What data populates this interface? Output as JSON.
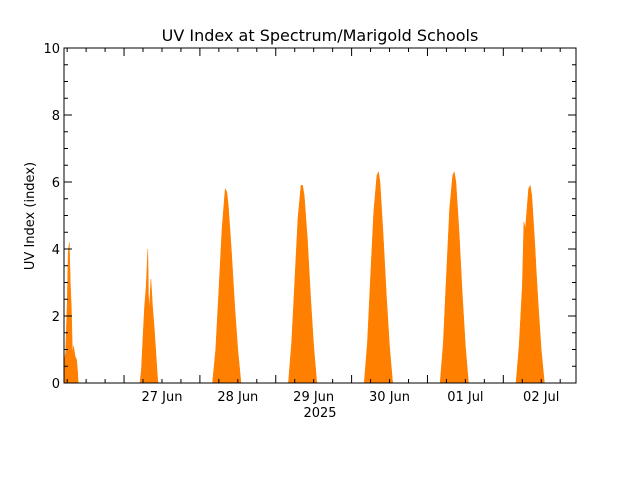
{
  "chart_data": {
    "type": "area",
    "title": "UV Index at Spectrum/Marigold Schools",
    "xlabel": "2025",
    "ylabel": "UV Index (index)",
    "ylim": [
      0,
      10
    ],
    "xlim": [
      "2025-06-26T05:00",
      "2025-07-02T23:00"
    ],
    "grid": false,
    "legend": "none",
    "color": "#ff7f00",
    "y_ticks": [
      0,
      2,
      4,
      6,
      8,
      10
    ],
    "x_ticks": [
      {
        "date": "2025-06-27",
        "label": "27 Jun"
      },
      {
        "date": "2025-06-28",
        "label": "28 Jun"
      },
      {
        "date": "2025-06-29",
        "label": "29 Jun"
      },
      {
        "date": "2025-06-30",
        "label": "30 Jun"
      },
      {
        "date": "2025-07-01",
        "label": "01 Jul"
      },
      {
        "date": "2025-07-02",
        "label": "02 Jul"
      }
    ],
    "series": [
      {
        "values": [
          [
            "2025-06-26T05:00",
            0.6
          ],
          [
            "2025-06-26T05:30",
            0.9
          ],
          [
            "2025-06-26T06:00",
            2.4
          ],
          [
            "2025-06-26T06:20",
            3.9
          ],
          [
            "2025-06-26T06:40",
            4.2
          ],
          [
            "2025-06-26T07:00",
            3.0
          ],
          [
            "2025-06-26T07:20",
            2.2
          ],
          [
            "2025-06-26T07:40",
            0.9
          ],
          [
            "2025-06-26T08:00",
            1.1
          ],
          [
            "2025-06-26T08:30",
            0.8
          ],
          [
            "2025-06-26T09:00",
            0.7
          ],
          [
            "2025-06-26T09:20",
            0.3
          ],
          [
            "2025-06-26T09:30",
            0.0
          ],
          [
            "2025-06-27T05:00",
            0.0
          ],
          [
            "2025-06-27T05:30",
            0.4
          ],
          [
            "2025-06-27T06:00",
            1.4
          ],
          [
            "2025-06-27T06:30",
            2.3
          ],
          [
            "2025-06-27T07:00",
            2.9
          ],
          [
            "2025-06-27T07:30",
            4.0
          ],
          [
            "2025-06-27T07:45",
            2.6
          ],
          [
            "2025-06-27T08:00",
            2.2
          ],
          [
            "2025-06-27T08:30",
            3.1
          ],
          [
            "2025-06-27T09:00",
            2.3
          ],
          [
            "2025-06-27T09:30",
            1.7
          ],
          [
            "2025-06-27T10:00",
            1.0
          ],
          [
            "2025-06-27T10:30",
            0.3
          ],
          [
            "2025-06-27T10:45",
            0.0
          ],
          [
            "2025-06-28T04:00",
            0.0
          ],
          [
            "2025-06-28T05:00",
            1.0
          ],
          [
            "2025-06-28T06:00",
            2.8
          ],
          [
            "2025-06-28T07:00",
            4.6
          ],
          [
            "2025-06-28T08:00",
            5.8
          ],
          [
            "2025-06-28T08:30",
            5.7
          ],
          [
            "2025-06-28T09:00",
            5.3
          ],
          [
            "2025-06-28T10:00",
            3.9
          ],
          [
            "2025-06-28T11:00",
            2.3
          ],
          [
            "2025-06-28T12:00",
            1.0
          ],
          [
            "2025-06-28T13:00",
            0.0
          ],
          [
            "2025-06-29T04:00",
            0.0
          ],
          [
            "2025-06-29T05:00",
            1.2
          ],
          [
            "2025-06-29T06:00",
            3.0
          ],
          [
            "2025-06-29T07:00",
            4.9
          ],
          [
            "2025-06-29T08:00",
            5.9
          ],
          [
            "2025-06-29T08:30",
            5.9
          ],
          [
            "2025-06-29T09:00",
            5.6
          ],
          [
            "2025-06-29T10:00",
            4.3
          ],
          [
            "2025-06-29T11:00",
            2.6
          ],
          [
            "2025-06-29T12:00",
            1.1
          ],
          [
            "2025-06-29T13:00",
            0.0
          ],
          [
            "2025-06-30T04:00",
            0.0
          ],
          [
            "2025-06-30T05:00",
            1.2
          ],
          [
            "2025-06-30T06:00",
            3.2
          ],
          [
            "2025-06-30T07:00",
            5.1
          ],
          [
            "2025-06-30T08:00",
            6.2
          ],
          [
            "2025-06-30T08:30",
            6.3
          ],
          [
            "2025-06-30T09:00",
            6.0
          ],
          [
            "2025-06-30T10:00",
            4.4
          ],
          [
            "2025-06-30T11:00",
            2.6
          ],
          [
            "2025-06-30T12:00",
            1.1
          ],
          [
            "2025-06-30T13:00",
            0.0
          ],
          [
            "2025-07-01T04:00",
            0.0
          ],
          [
            "2025-07-01T05:00",
            1.2
          ],
          [
            "2025-07-01T06:00",
            3.2
          ],
          [
            "2025-07-01T07:00",
            5.2
          ],
          [
            "2025-07-01T08:00",
            6.2
          ],
          [
            "2025-07-01T08:30",
            6.3
          ],
          [
            "2025-07-01T09:00",
            6.0
          ],
          [
            "2025-07-01T10:00",
            4.5
          ],
          [
            "2025-07-01T11:00",
            2.7
          ],
          [
            "2025-07-01T12:00",
            1.1
          ],
          [
            "2025-07-01T13:00",
            0.0
          ],
          [
            "2025-07-02T04:00",
            0.0
          ],
          [
            "2025-07-02T05:00",
            1.1
          ],
          [
            "2025-07-02T06:00",
            2.9
          ],
          [
            "2025-07-02T06:30",
            4.8
          ],
          [
            "2025-07-02T07:00",
            4.6
          ],
          [
            "2025-07-02T08:00",
            5.8
          ],
          [
            "2025-07-02T08:30",
            5.9
          ],
          [
            "2025-07-02T09:00",
            5.6
          ],
          [
            "2025-07-02T10:00",
            4.1
          ],
          [
            "2025-07-02T10:30",
            3.2
          ],
          [
            "2025-07-02T11:00",
            2.4
          ],
          [
            "2025-07-02T12:00",
            1.0
          ],
          [
            "2025-07-02T13:00",
            0.0
          ]
        ]
      }
    ]
  }
}
